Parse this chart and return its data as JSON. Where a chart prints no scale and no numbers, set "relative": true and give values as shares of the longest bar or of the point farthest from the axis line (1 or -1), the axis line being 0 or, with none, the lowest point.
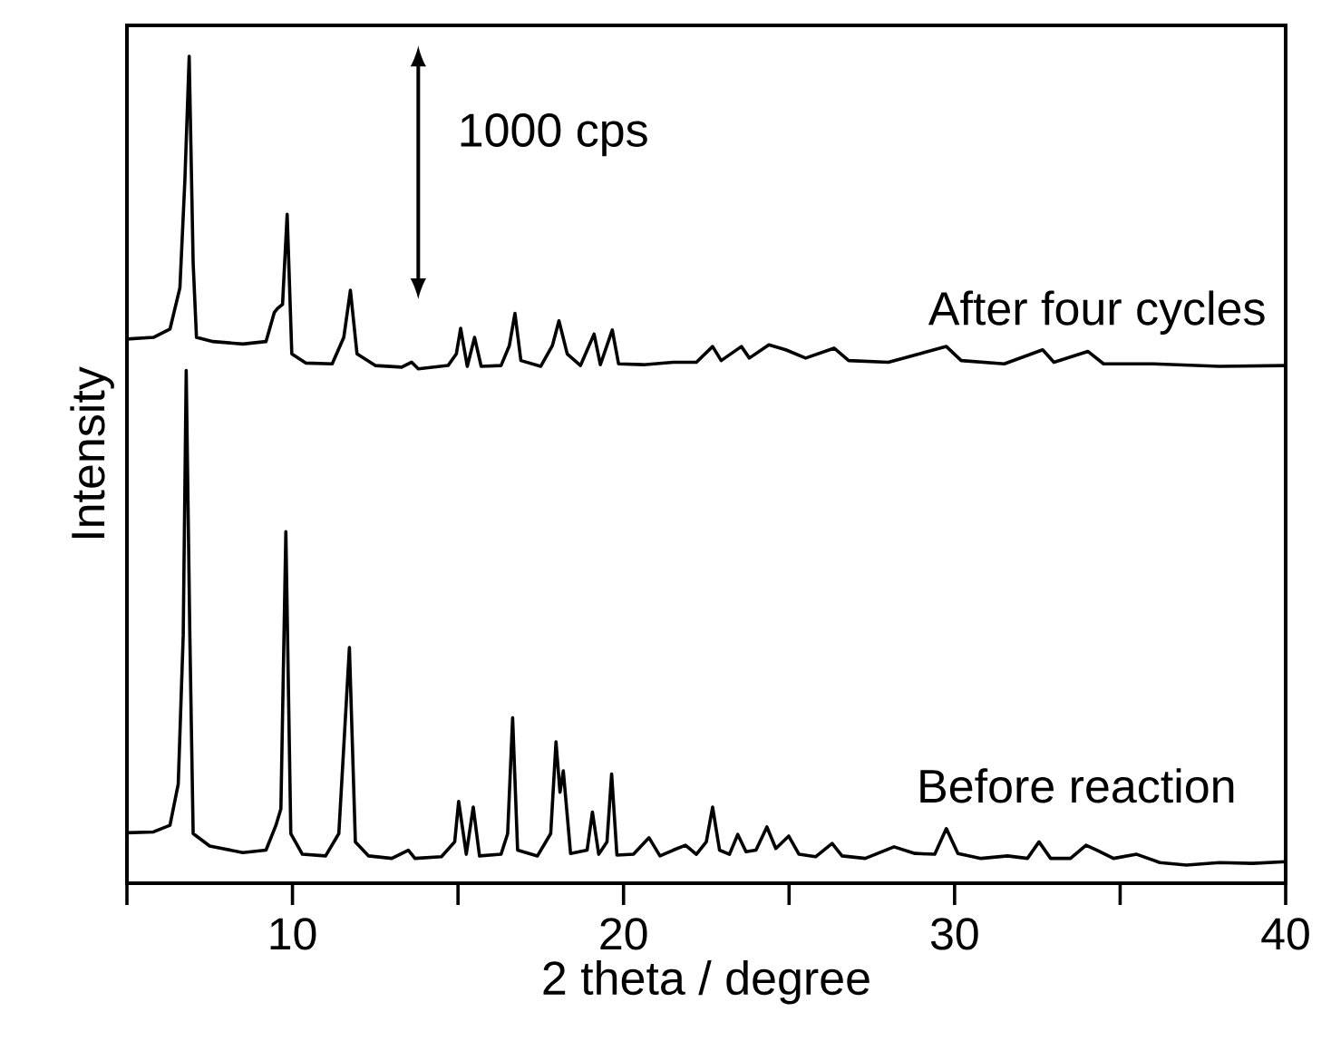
{
  "chart_data": {
    "type": "line",
    "xlabel": "2 theta / degree",
    "ylabel": "Intensity",
    "relative": true,
    "tick_labels": "x",
    "xlim": [
      5,
      40
    ],
    "xticks": [
      {
        "value": 5,
        "label": null
      },
      10,
      {
        "value": 15,
        "label": null
      },
      20,
      {
        "value": 25,
        "label": null
      },
      30,
      {
        "value": 35,
        "label": null
      },
      40
    ],
    "annotations": [
      "1000 cps"
    ],
    "series": [
      {
        "name": "After four cycles",
        "color": "#000000",
        "x": [
          5.0,
          5.8,
          6.3,
          6.6,
          6.75,
          6.88,
          7.0,
          7.1,
          7.6,
          8.5,
          9.2,
          9.45,
          9.55,
          9.7,
          9.84,
          9.98,
          10.4,
          11.2,
          11.55,
          11.75,
          11.95,
          12.5,
          13.3,
          13.6,
          13.8,
          14.7,
          14.95,
          15.08,
          15.28,
          15.5,
          15.7,
          16.3,
          16.55,
          16.72,
          16.9,
          17.5,
          17.85,
          18.05,
          18.3,
          18.7,
          19.11,
          19.3,
          19.66,
          19.85,
          20.6,
          21.5,
          22.2,
          22.69,
          22.95,
          23.56,
          23.8,
          24.39,
          24.9,
          25.5,
          26.36,
          26.8,
          28.0,
          29.75,
          30.2,
          31.5,
          32.66,
          33.0,
          34.03,
          34.5,
          36.0,
          38.0,
          40.0
        ],
        "values": [
          0.658,
          0.66,
          0.67,
          0.72,
          0.85,
          1.0,
          0.75,
          0.66,
          0.655,
          0.652,
          0.655,
          0.69,
          0.695,
          0.7,
          0.809,
          0.64,
          0.629,
          0.628,
          0.66,
          0.717,
          0.64,
          0.626,
          0.624,
          0.63,
          0.622,
          0.626,
          0.64,
          0.671,
          0.625,
          0.66,
          0.625,
          0.626,
          0.65,
          0.689,
          0.632,
          0.625,
          0.65,
          0.68,
          0.64,
          0.626,
          0.664,
          0.627,
          0.669,
          0.628,
          0.627,
          0.63,
          0.63,
          0.649,
          0.632,
          0.649,
          0.635,
          0.651,
          0.645,
          0.635,
          0.647,
          0.632,
          0.63,
          0.649,
          0.632,
          0.628,
          0.645,
          0.63,
          0.643,
          0.628,
          0.628,
          0.625,
          0.626
        ]
      },
      {
        "name": "Before reaction",
        "color": "#000000",
        "x": [
          5.0,
          5.8,
          6.3,
          6.55,
          6.7,
          6.79,
          6.9,
          7.0,
          7.5,
          8.5,
          9.2,
          9.5,
          9.65,
          9.8,
          9.95,
          10.3,
          11.0,
          11.4,
          11.72,
          11.9,
          12.3,
          13.0,
          13.5,
          13.7,
          14.5,
          14.9,
          15.02,
          15.25,
          15.46,
          15.65,
          16.3,
          16.5,
          16.65,
          16.8,
          17.4,
          17.8,
          17.96,
          18.08,
          18.18,
          18.4,
          18.9,
          19.06,
          19.25,
          19.5,
          19.64,
          19.8,
          20.3,
          20.77,
          21.1,
          21.5,
          21.87,
          22.2,
          22.5,
          22.69,
          22.9,
          23.2,
          23.45,
          23.7,
          24.0,
          24.33,
          24.6,
          24.99,
          25.3,
          25.8,
          26.3,
          26.6,
          27.3,
          28.17,
          28.8,
          29.4,
          29.75,
          30.1,
          30.8,
          31.6,
          32.2,
          32.55,
          32.9,
          33.5,
          33.97,
          34.3,
          34.8,
          35.5,
          36.2,
          37.0,
          38.0,
          39.0,
          40.0
        ],
        "values": [
          0.061,
          0.062,
          0.07,
          0.12,
          0.3,
          0.62,
          0.3,
          0.06,
          0.045,
          0.037,
          0.04,
          0.07,
          0.09,
          0.425,
          0.06,
          0.035,
          0.033,
          0.06,
          0.285,
          0.05,
          0.033,
          0.03,
          0.04,
          0.03,
          0.032,
          0.05,
          0.099,
          0.035,
          0.092,
          0.033,
          0.035,
          0.06,
          0.2,
          0.04,
          0.033,
          0.06,
          0.171,
          0.11,
          0.136,
          0.036,
          0.04,
          0.086,
          0.035,
          0.05,
          0.132,
          0.034,
          0.035,
          0.055,
          0.033,
          0.04,
          0.046,
          0.035,
          0.05,
          0.092,
          0.04,
          0.035,
          0.059,
          0.038,
          0.04,
          0.068,
          0.042,
          0.057,
          0.035,
          0.032,
          0.048,
          0.033,
          0.03,
          0.044,
          0.036,
          0.035,
          0.066,
          0.036,
          0.03,
          0.033,
          0.03,
          0.05,
          0.03,
          0.03,
          0.046,
          0.04,
          0.03,
          0.035,
          0.025,
          0.022,
          0.025,
          0.024,
          0.026
        ]
      }
    ]
  }
}
